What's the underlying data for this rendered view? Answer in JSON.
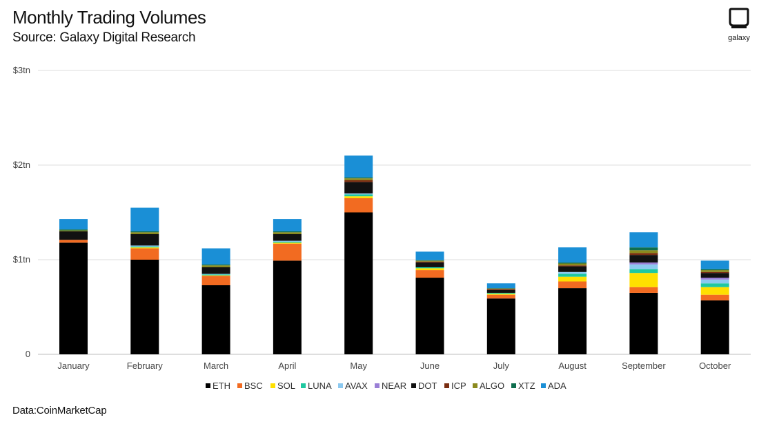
{
  "header": {
    "title": "Monthly Trading Volumes",
    "subtitle": "Source: Galaxy Digital Research"
  },
  "logo": {
    "icon": "galaxy-logo-icon",
    "label": "galaxy"
  },
  "footer": {
    "text": "Data:CoinMarketCap"
  },
  "colors": {
    "ETH": "#000000",
    "BSC": "#f26b21",
    "SOL": "#ffe000",
    "LUNA": "#1fc8a0",
    "AVAX": "#8cc9f0",
    "NEAR": "#9a7fd6",
    "DOT": "#111111",
    "ICP": "#7a2e12",
    "ALGO": "#8b8a1e",
    "XTZ": "#0e6e4e",
    "ADA": "#1a8fd6"
  },
  "chart_data": {
    "type": "bar",
    "stacked": true,
    "categories": [
      "January",
      "February",
      "March",
      "April",
      "May",
      "June",
      "July",
      "August",
      "September",
      "October"
    ],
    "y_ticks": [
      {
        "value": 0,
        "label": "0"
      },
      {
        "value": 1,
        "label": "$1tn"
      },
      {
        "value": 2,
        "label": "$2tn"
      },
      {
        "value": 3,
        "label": "$3tn"
      }
    ],
    "ylim": [
      0,
      3
    ],
    "grid": true,
    "legend_position": "bottom",
    "series": [
      {
        "name": "ETH",
        "values": [
          1.18,
          1.0,
          0.73,
          0.99,
          1.5,
          0.81,
          0.59,
          0.7,
          0.65,
          0.57
        ]
      },
      {
        "name": "BSC",
        "values": [
          0.03,
          0.12,
          0.1,
          0.18,
          0.15,
          0.08,
          0.04,
          0.07,
          0.06,
          0.06
        ]
      },
      {
        "name": "SOL",
        "values": [
          0.0,
          0.01,
          0.005,
          0.01,
          0.02,
          0.02,
          0.01,
          0.05,
          0.15,
          0.08
        ]
      },
      {
        "name": "LUNA",
        "values": [
          0.0,
          0.01,
          0.01,
          0.01,
          0.02,
          0.01,
          0.01,
          0.03,
          0.04,
          0.04
        ]
      },
      {
        "name": "AVAX",
        "values": [
          0.0,
          0.01,
          0.005,
          0.01,
          0.01,
          0.0,
          0.0,
          0.02,
          0.05,
          0.04
        ]
      },
      {
        "name": "NEAR",
        "values": [
          0.0,
          0.0,
          0.0,
          0.0,
          0.0,
          0.0,
          0.0,
          0.0,
          0.02,
          0.02
        ]
      },
      {
        "name": "DOT",
        "values": [
          0.09,
          0.12,
          0.07,
          0.07,
          0.12,
          0.05,
          0.03,
          0.06,
          0.08,
          0.05
        ]
      },
      {
        "name": "ICP",
        "values": [
          0.0,
          0.0,
          0.0,
          0.0,
          0.02,
          0.01,
          0.01,
          0.01,
          0.02,
          0.01
        ]
      },
      {
        "name": "ALGO",
        "values": [
          0.01,
          0.02,
          0.02,
          0.02,
          0.02,
          0.01,
          0.005,
          0.02,
          0.03,
          0.02
        ]
      },
      {
        "name": "XTZ",
        "values": [
          0.01,
          0.01,
          0.01,
          0.01,
          0.01,
          0.005,
          0.005,
          0.01,
          0.03,
          0.01
        ]
      },
      {
        "name": "ADA",
        "values": [
          0.11,
          0.25,
          0.17,
          0.13,
          0.23,
          0.09,
          0.05,
          0.16,
          0.16,
          0.09
        ]
      }
    ]
  }
}
